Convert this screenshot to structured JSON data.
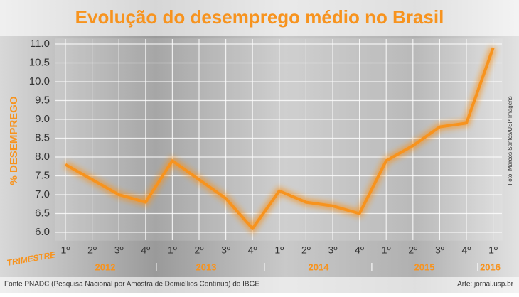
{
  "chart_data": {
    "type": "line",
    "title": "Evolução do desemprego médio no Brasil",
    "ylabel": "% DESEMPREGO",
    "xlabel": "TRIMESTRE",
    "categories": [
      "1º",
      "2º",
      "3º",
      "4º",
      "1º",
      "2º",
      "3º",
      "4º",
      "1º",
      "2º",
      "3º",
      "4º",
      "1º",
      "2º",
      "3º",
      "4º",
      "1º"
    ],
    "years": [
      "2012",
      "2013",
      "2014",
      "2015",
      "2016"
    ],
    "values": [
      7.8,
      7.4,
      7.0,
      6.8,
      7.9,
      7.4,
      6.9,
      6.1,
      7.1,
      6.8,
      6.7,
      6.5,
      7.9,
      8.3,
      8.8,
      8.9,
      10.9
    ],
    "color": "#f7931e",
    "ylim": [
      6.0,
      11.0
    ],
    "yticks": [
      {
        "value": 6.0,
        "label": "6.0"
      },
      6.5,
      {
        "value": 7.0,
        "label": "7.0"
      },
      7.5,
      {
        "value": 8.0,
        "label": "8.0"
      },
      8.5,
      {
        "value": 9.0,
        "label": "9.0"
      },
      9.5,
      {
        "value": 10.0,
        "label": "10.0"
      },
      10.5,
      {
        "value": 11.0,
        "label": "11.0"
      }
    ],
    "grid": true,
    "source": "Fonte PNADC (Pesquisa Nacional por Amostra de Domicílios Contínua) do IBGE",
    "credit": "Arte: jornal.usp.br",
    "photo_credit": "Foto: Marcos Santos/USP Imagens"
  }
}
